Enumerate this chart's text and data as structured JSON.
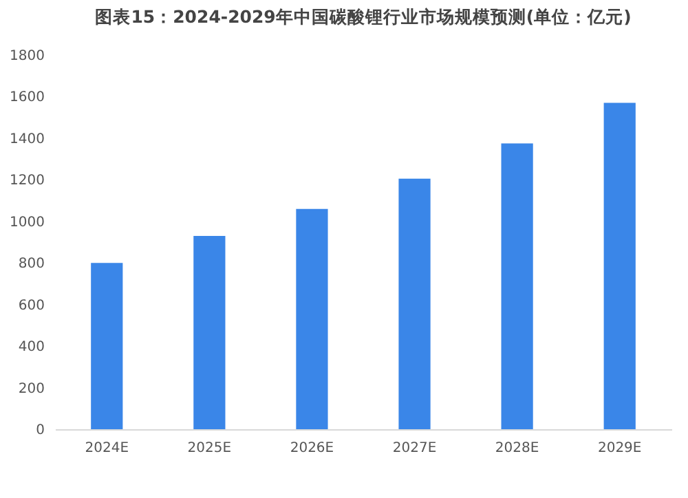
{
  "chart_data": {
    "type": "bar",
    "title": "图表15：2024-2029年中国碳酸锂行业市场规模预测(单位：亿元)",
    "categories": [
      "2024E",
      "2025E",
      "2026E",
      "2027E",
      "2028E",
      "2029E"
    ],
    "values": [
      800,
      930,
      1060,
      1205,
      1375,
      1570
    ],
    "color": "#3a86e8",
    "ylim": [
      0,
      1800
    ],
    "yticks": [
      0,
      200,
      400,
      600,
      800,
      1000,
      1200,
      1400,
      1600,
      1800
    ],
    "grid": false
  }
}
